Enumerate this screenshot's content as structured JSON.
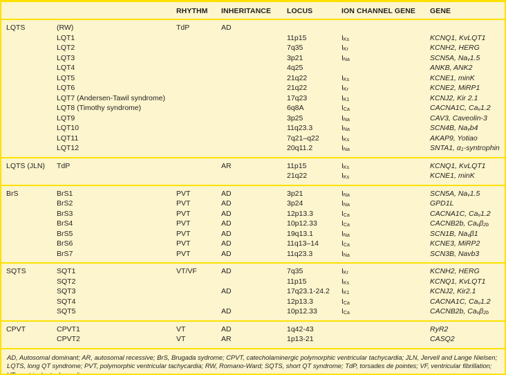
{
  "colors": {
    "background": "#FCF5CD",
    "rule_yellow": "#FFE100",
    "text": "#231F20"
  },
  "table": {
    "header": {
      "rhythm": "RHYTHM",
      "inheritance": "INHERITANCE",
      "locus": "LOCUS",
      "ion_channel_gene": "ION CHANNEL GENE",
      "gene": "GENE"
    },
    "column_keys": [
      "syndrome",
      "subtype",
      "rhythm",
      "inheritance",
      "locus",
      "ion-channel-gene",
      "gene"
    ],
    "sections": [
      {
        "syndrome": "LQTS",
        "rows": [
          [
            "(RW)",
            "TdP",
            "AD",
            "",
            "",
            ""
          ],
          [
            "LQT1",
            "",
            "",
            "11p15",
            "I_{Ks}",
            "KCNQ1, KvLQT1"
          ],
          [
            "LQT2",
            "",
            "",
            "7q35",
            "I_{Kr}",
            "KCNH2, HERG"
          ],
          [
            "LQT3",
            "",
            "",
            "3p21",
            "I_{Na}",
            "SCN5A, Na_{v}1.5"
          ],
          [
            "LQT4",
            "",
            "",
            "4q25",
            "",
            "ANKB, ANK2"
          ],
          [
            "LQT5",
            "",
            "",
            "21q22",
            "I_{Ks}",
            "KCNE1, minK"
          ],
          [
            "LQT6",
            "",
            "",
            "21q22",
            "I_{Kr}",
            "KCNE2, MiRP1"
          ],
          [
            "LQT7 (Andersen-Tawil syndrome)",
            "",
            "",
            "17q23",
            "I_{K1}",
            "KCNJ2, Kir 2.1"
          ],
          [
            "LQT8 (Timothy syndrome)",
            "",
            "",
            "6q8A",
            "I_{Ca}",
            "CACNA1C, Ca_{v}1.2"
          ],
          [
            "LQT9",
            "",
            "",
            "3p25",
            "I_{Na}",
            "CAV3, Caveolin-3"
          ],
          [
            "LQT10",
            "",
            "",
            "11q23.3",
            "I_{Na}",
            "SCN4B, Na_{v}b4"
          ],
          [
            "LQT11",
            "",
            "",
            "7q21–q22",
            "I_{Ks}",
            "AKAP9, Yotiao"
          ],
          [
            "LQT12",
            "",
            "",
            "20q11.2",
            "I_{Na}",
            "SNTA1, α_{1}-syntrophin"
          ]
        ]
      },
      {
        "syndrome": "LQTS (JLN)",
        "rows": [
          [
            "TdP",
            "",
            "AR",
            "11p15",
            "I_{Ks}",
            "KCNQ1, KvLQT1"
          ],
          [
            "",
            "",
            "",
            "21q22",
            "I_{Ks}",
            "KCNE1, minK"
          ]
        ]
      },
      {
        "syndrome": "BrS",
        "rows": [
          [
            "BrS1",
            "PVT",
            "AD",
            "3p21",
            "I_{Na}",
            "SCN5A, Na_{v}1.5"
          ],
          [
            "BrS2",
            "PVT",
            "AD",
            "3p24",
            "I_{Na}",
            "GPD1L"
          ],
          [
            "BrS3",
            "PVT",
            "AD",
            "12p13.3",
            "I_{Ca}",
            "CACNA1C, Ca_{v}1.2"
          ],
          [
            "BrS4",
            "PVT",
            "AD",
            "10p12.33",
            "I_{Ca}",
            "CACNB2b, Ca_{v}β_{2b}"
          ],
          [
            "BrS5",
            "PVT",
            "AD",
            "19q13.1",
            "I_{Na}",
            "SCN1B, Na_{v}β1"
          ],
          [
            "BrS6",
            "PVT",
            "AD",
            "11q13–14",
            "I_{Ca}",
            "KCNE3, MiRP2"
          ],
          [
            "BrS7",
            "PVT",
            "AD",
            "11q23.3",
            "I_{Na}",
            "SCN3B, Navb3"
          ]
        ]
      },
      {
        "syndrome": "SQTS",
        "rows": [
          [
            "SQT1",
            "VT/VF",
            "AD",
            "7q35",
            "I_{Kr}",
            "KCNH2, HERG"
          ],
          [
            "SQT2",
            "",
            "",
            "11p15",
            "I_{Ks}",
            "KCNQ1, KvLQT1"
          ],
          [
            "SQT3",
            "",
            "AD",
            "17q23.1-24.2",
            "I_{K1}",
            "KCNJ2, Kir2.1"
          ],
          [
            "SQT4",
            "",
            "",
            "12p13.3",
            "I_{Ca}",
            "CACNA1C, Ca_{v}1.2"
          ],
          [
            "SQT5",
            "",
            "AD",
            "10p12.33",
            "I_{Ca}",
            "CACNB2b, Ca_{v}β_{2b}"
          ]
        ]
      },
      {
        "syndrome": "CPVT",
        "rows": [
          [
            "CPVT1",
            "VT",
            "AD",
            "1q42-43",
            "",
            "RyR2"
          ],
          [
            "CPVT2",
            "VT",
            "AR",
            "1p13-21",
            "",
            "CASQ2"
          ]
        ]
      }
    ]
  },
  "footnote": "AD, Autosomal dominant; AR, autosomal recessive; BrS, Brugada sydrome; CPVT, catecholaminergic polymorphic ventricular tachycardia; JLN, Jervell and Lange Nielsen; LQTS, long QT syndrome; PVT, polymorphic ventricular tachycardia; RW, Romano-Ward; SQTS, short QT syndrome; TdP, torsades de pointes; VF, ventricular fibrillation; VT, ventricular tachycardia."
}
